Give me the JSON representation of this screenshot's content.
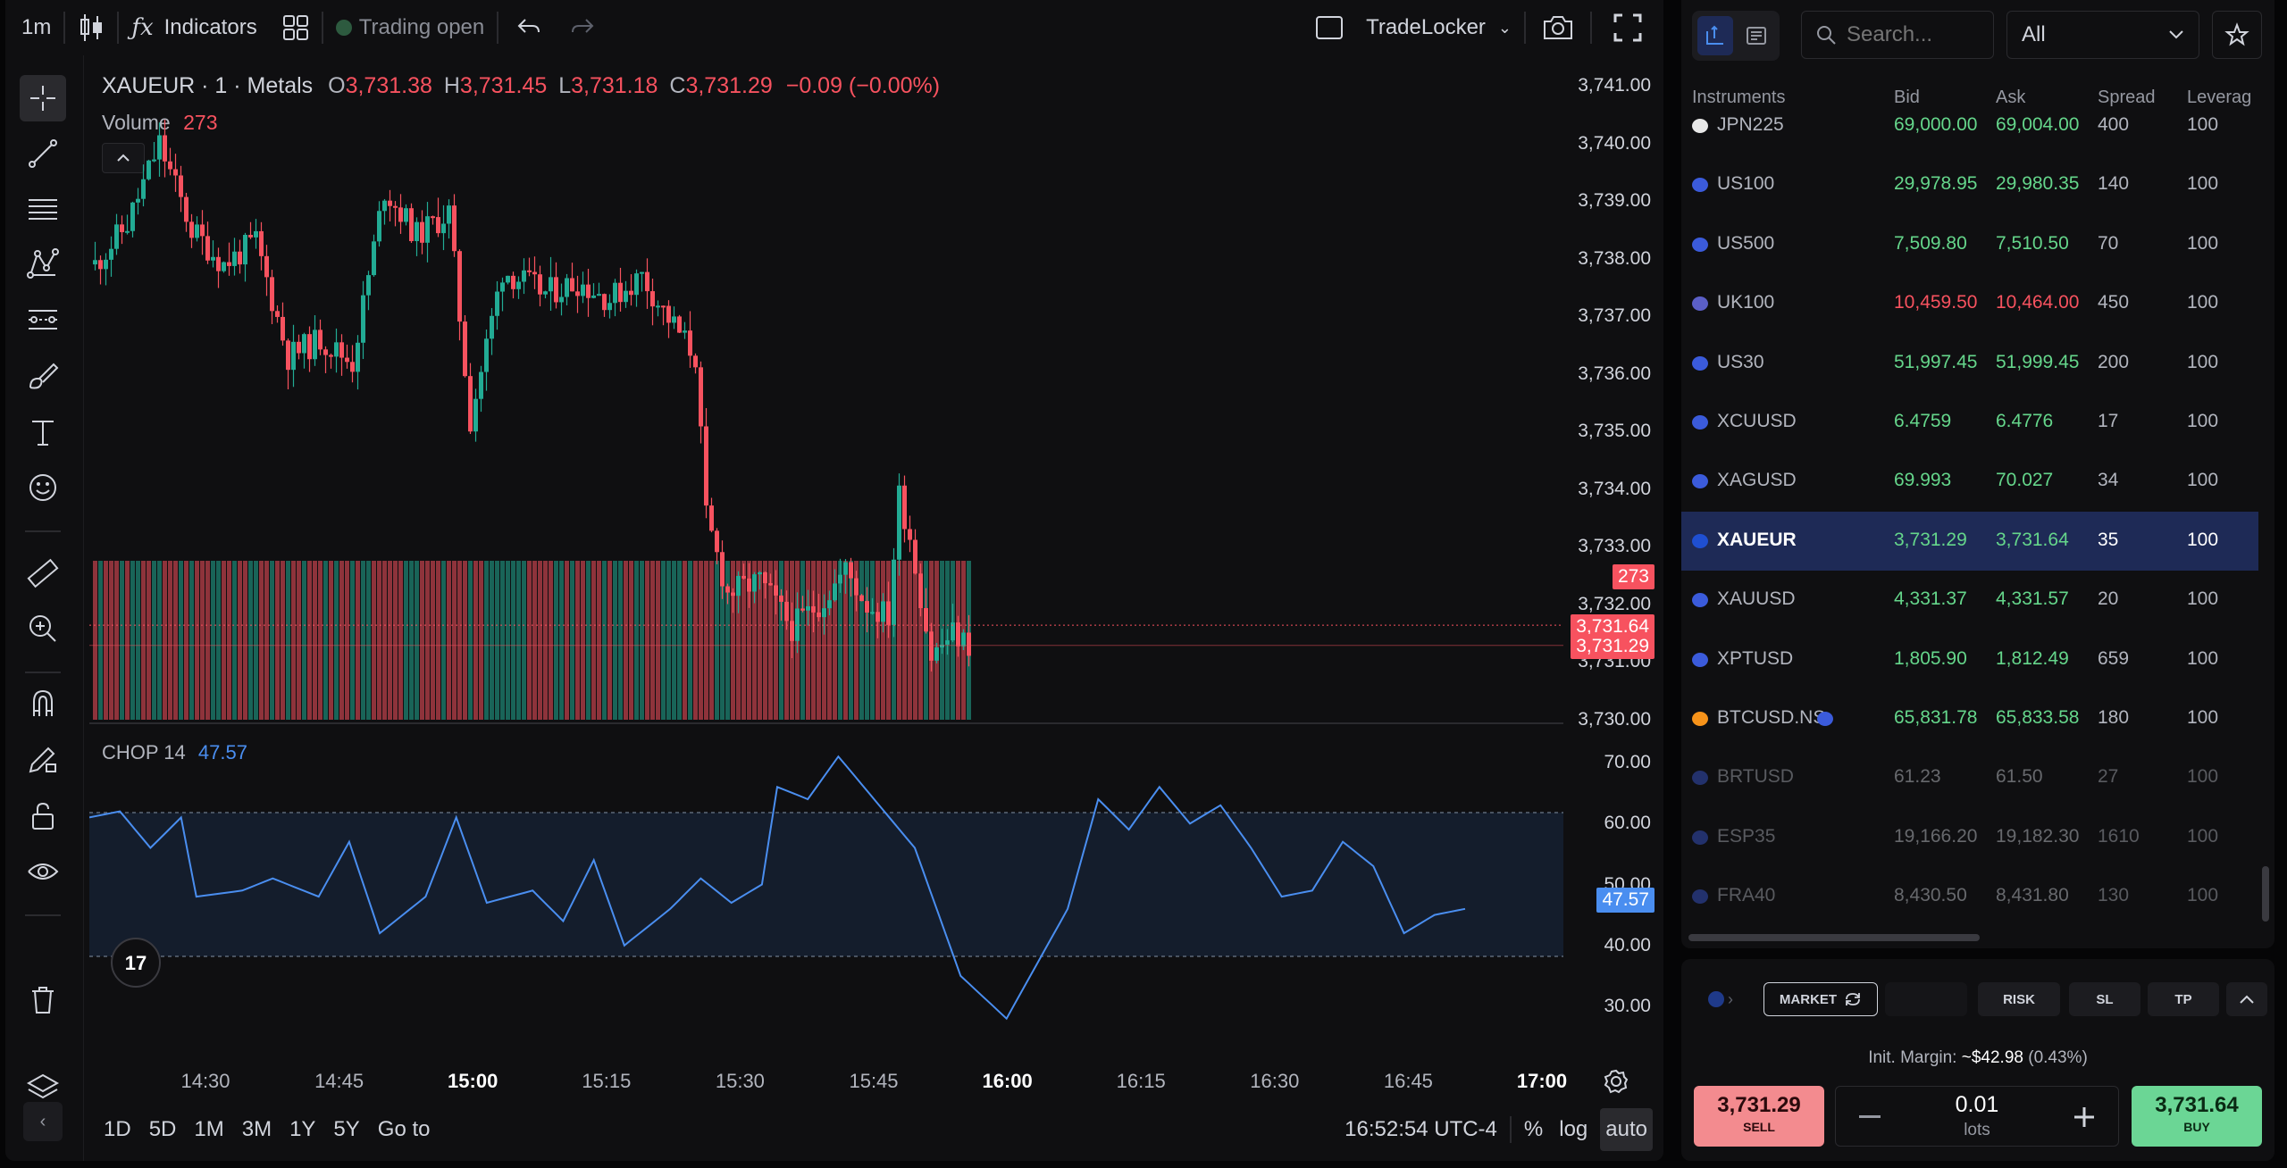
{
  "toolbar": {
    "interval": "1m",
    "indicators_label": "Indicators",
    "trading_status": "Trading open",
    "broker_name": "TradeLocker"
  },
  "legend": {
    "symbol": "XAUEUR · 1 · Metals",
    "o_label": "O",
    "o_val": "3,731.38",
    "h_label": "H",
    "h_val": "3,731.45",
    "l_label": "L",
    "l_val": "3,731.18",
    "c_label": "C",
    "c_val": "3,731.29",
    "change": "−0.09 (−0.00%)",
    "volume_label": "Volume",
    "volume_val": "273",
    "chop_label": "CHOP 14",
    "chop_val": "47.57"
  },
  "price_axis": {
    "labels": [
      "3,741.00",
      "3,740.00",
      "3,739.00",
      "3,738.00",
      "3,737.00",
      "3,736.00",
      "3,735.00",
      "3,734.00",
      "3,733.00",
      "3,732.00",
      "3,731.00",
      "3,730.00"
    ],
    "volume_tag": "273",
    "ask_tag": "3,731.64",
    "bid_tag": "3,731.29"
  },
  "chop_axis": {
    "labels": [
      "70.00",
      "60.00",
      "50.00",
      "40.00",
      "30.00"
    ],
    "value_tag": "47.57"
  },
  "time_axis": [
    {
      "label": "14:30",
      "bold": false
    },
    {
      "label": "14:45",
      "bold": false
    },
    {
      "label": "15:00",
      "bold": true
    },
    {
      "label": "15:15",
      "bold": false
    },
    {
      "label": "15:30",
      "bold": false
    },
    {
      "label": "15:45",
      "bold": false
    },
    {
      "label": "16:00",
      "bold": true
    },
    {
      "label": "16:15",
      "bold": false
    },
    {
      "label": "16:30",
      "bold": false
    },
    {
      "label": "16:45",
      "bold": false
    },
    {
      "label": "17:00",
      "bold": true
    }
  ],
  "bottombar": {
    "ranges": [
      "1D",
      "5D",
      "1M",
      "3M",
      "1Y",
      "5Y"
    ],
    "goto": "Go to",
    "clock": "16:52:54 UTC-4",
    "pct": "%",
    "log": "log",
    "auto": "auto"
  },
  "chart_data": {
    "type": "candlestick",
    "symbol": "XAUEUR",
    "interval": "1m",
    "ylim": [
      3730.0,
      3741.0
    ],
    "x_range": [
      "14:20",
      "16:52"
    ],
    "close_path": [
      [
        0,
        3737.9
      ],
      [
        6,
        3738.6
      ],
      [
        12,
        3740.0
      ],
      [
        18,
        3738.5
      ],
      [
        24,
        3737.9
      ],
      [
        30,
        3738.3
      ],
      [
        36,
        3736.3
      ],
      [
        42,
        3736.6
      ],
      [
        48,
        3736.2
      ],
      [
        54,
        3739.2
      ],
      [
        60,
        3738.4
      ],
      [
        66,
        3738.8
      ],
      [
        70,
        3735.2
      ],
      [
        76,
        3737.8
      ],
      [
        84,
        3737.4
      ],
      [
        90,
        3737.6
      ],
      [
        96,
        3737.3
      ],
      [
        102,
        3737.7
      ],
      [
        106,
        3737.1
      ],
      [
        112,
        3736.3
      ],
      [
        114,
        3733.5
      ],
      [
        118,
        3732.2
      ],
      [
        124,
        3732.4
      ],
      [
        130,
        3731.6
      ],
      [
        136,
        3732.1
      ],
      [
        140,
        3732.6
      ],
      [
        144,
        3732.0
      ],
      [
        148,
        3731.8
      ],
      [
        150,
        3733.9
      ],
      [
        152,
        3733.2
      ],
      [
        156,
        3731.1
      ],
      [
        160,
        3731.5
      ],
      [
        163,
        3731.3
      ]
    ],
    "volume_last": 273,
    "chop_length": 14,
    "chop_levels": [
      61.8,
      38.2
    ],
    "chop_ylim": [
      25,
      72
    ],
    "chop_path": [
      [
        0,
        61
      ],
      [
        4,
        62
      ],
      [
        8,
        56
      ],
      [
        12,
        61
      ],
      [
        14,
        48
      ],
      [
        20,
        49
      ],
      [
        24,
        51
      ],
      [
        30,
        48
      ],
      [
        34,
        57
      ],
      [
        38,
        42
      ],
      [
        44,
        48
      ],
      [
        48,
        61
      ],
      [
        52,
        47
      ],
      [
        58,
        49
      ],
      [
        62,
        44
      ],
      [
        66,
        54
      ],
      [
        70,
        40
      ],
      [
        76,
        46
      ],
      [
        80,
        51
      ],
      [
        84,
        47
      ],
      [
        88,
        50
      ],
      [
        90,
        66
      ],
      [
        94,
        64
      ],
      [
        98,
        71
      ],
      [
        104,
        62
      ],
      [
        108,
        56
      ],
      [
        114,
        35
      ],
      [
        120,
        28
      ],
      [
        124,
        37
      ],
      [
        128,
        46
      ],
      [
        132,
        64
      ],
      [
        136,
        59
      ],
      [
        140,
        66
      ],
      [
        144,
        60
      ],
      [
        148,
        63
      ],
      [
        152,
        56
      ],
      [
        156,
        48
      ],
      [
        160,
        49
      ],
      [
        164,
        57
      ],
      [
        168,
        53
      ],
      [
        172,
        42
      ],
      [
        176,
        45
      ],
      [
        180,
        46
      ]
    ]
  },
  "search": {
    "placeholder": "Search...",
    "filter": "All"
  },
  "instruments_header": [
    "Instruments",
    "Bid",
    "Ask",
    "Spread",
    "Leverag"
  ],
  "instruments": [
    {
      "name": "JPN225",
      "bid": "69,000.00",
      "ask": "69,004.00",
      "spread": "400",
      "lev": "100",
      "color": "green",
      "flag": "#e8e8e8",
      "dim": false,
      "sel": false
    },
    {
      "name": "US100",
      "bid": "29,978.95",
      "ask": "29,980.35",
      "spread": "140",
      "lev": "100",
      "color": "green",
      "flag": "#3b5bdb",
      "dim": false,
      "sel": false
    },
    {
      "name": "US500",
      "bid": "7,509.80",
      "ask": "7,510.50",
      "spread": "70",
      "lev": "100",
      "color": "green",
      "flag": "#3b5bdb",
      "dim": false,
      "sel": false
    },
    {
      "name": "UK100",
      "bid": "10,459.50",
      "ask": "10,464.00",
      "spread": "450",
      "lev": "100",
      "color": "red",
      "flag": "#5b5fc7",
      "dim": false,
      "sel": false
    },
    {
      "name": "US30",
      "bid": "51,997.45",
      "ask": "51,999.45",
      "spread": "200",
      "lev": "100",
      "color": "green",
      "flag": "#3b5bdb",
      "dim": false,
      "sel": false
    },
    {
      "name": "XCUUSD",
      "bid": "6.4759",
      "ask": "6.4776",
      "spread": "17",
      "lev": "100",
      "color": "green",
      "flag": "#3b5bdb",
      "dim": false,
      "sel": false
    },
    {
      "name": "XAGUSD",
      "bid": "69.993",
      "ask": "70.027",
      "spread": "34",
      "lev": "100",
      "color": "green",
      "flag": "#3b5bdb",
      "dim": false,
      "sel": false
    },
    {
      "name": "XAUEUR",
      "bid": "3,731.29",
      "ask": "3,731.64",
      "spread": "35",
      "lev": "100",
      "color": "green",
      "flag": "#1f4fd1",
      "dim": false,
      "sel": true
    },
    {
      "name": "XAUUSD",
      "bid": "4,331.37",
      "ask": "4,331.57",
      "spread": "20",
      "lev": "100",
      "color": "green",
      "flag": "#3b5bdb",
      "dim": false,
      "sel": false
    },
    {
      "name": "XPTUSD",
      "bid": "1,805.90",
      "ask": "1,812.49",
      "spread": "659",
      "lev": "100",
      "color": "green",
      "flag": "#3b5bdb",
      "dim": false,
      "sel": false
    },
    {
      "name": "BTCUSD.NS",
      "bid": "65,831.78",
      "ask": "65,833.58",
      "spread": "180",
      "lev": "100",
      "color": "green",
      "flag": "#f7931a",
      "dim": false,
      "sel": false
    },
    {
      "name": "BRTUSD",
      "bid": "61.23",
      "ask": "61.50",
      "spread": "27",
      "lev": "100",
      "color": "grey",
      "flag": "#3b5bdb",
      "dim": true,
      "sel": false
    },
    {
      "name": "ESP35",
      "bid": "19,166.20",
      "ask": "19,182.30",
      "spread": "1610",
      "lev": "100",
      "color": "grey",
      "flag": "#3b5bdb",
      "dim": true,
      "sel": false
    },
    {
      "name": "FRA40",
      "bid": "8,430.50",
      "ask": "8,431.80",
      "spread": "130",
      "lev": "100",
      "color": "grey",
      "flag": "#3b5bdb",
      "dim": true,
      "sel": false
    }
  ],
  "order": {
    "market": "MARKET",
    "risk": "RISK",
    "sl": "SL",
    "tp": "TP",
    "margin_label": "Init. Margin:",
    "margin_val": "~$42.98",
    "margin_pct": "(0.43%)",
    "sell_price": "3,731.29",
    "sell_label": "SELL",
    "lots_val": "0.01",
    "lots_label": "lots",
    "buy_price": "3,731.64",
    "buy_label": "BUY"
  },
  "colors": {
    "up": "#22ab94",
    "down": "#f7525f",
    "chop_line": "#4a8ef0",
    "selection": "#1e2a56",
    "buy_bg": "#6bd695",
    "sell_bg": "#f38b8f"
  }
}
